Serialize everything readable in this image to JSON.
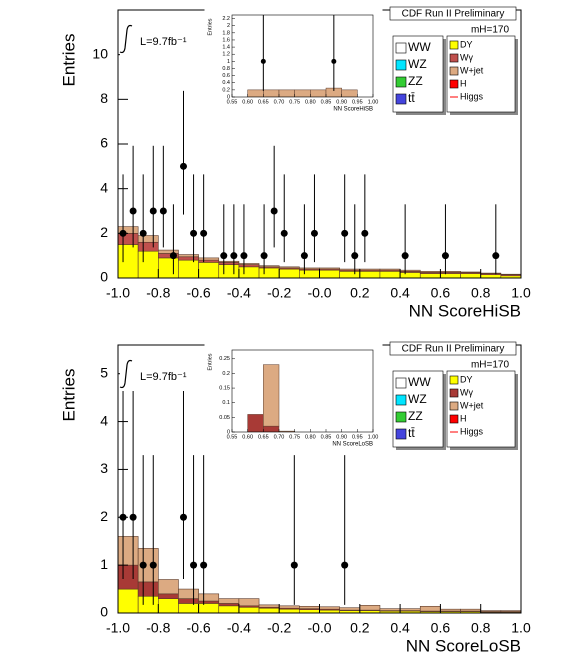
{
  "chart_data": [
    {
      "type": "histogram",
      "title": "CDF Run II Preliminary",
      "mass_label": "mH=170",
      "lumi_label": "L=9.7fb⁻¹",
      "ylabel": "Entries",
      "xlabel": "NN ScoreHiSB",
      "xlim": [
        -1,
        1
      ],
      "ylim": [
        0,
        12
      ],
      "xticks": [
        {
          "value": -1,
          "label": "-1.0"
        },
        -0.8,
        -0.6,
        -0.4,
        -0.2,
        {
          "value": 0,
          "label": "-0.0"
        },
        0.2,
        0.4,
        0.6,
        0.8,
        {
          "value": 1,
          "label": "1.0"
        }
      ],
      "yticks": [
        0,
        2,
        4,
        6,
        8,
        10
      ],
      "bins": [
        -1,
        -0.9,
        -0.8,
        -0.7,
        -0.6,
        -0.5,
        -0.4,
        -0.3,
        -0.2,
        -0.1,
        0,
        0.1,
        0.2,
        0.3,
        0.4,
        0.5,
        0.6,
        0.7,
        0.8,
        0.9,
        1
      ],
      "series": [
        {
          "name": "WW",
          "color": "#ffffff"
        },
        {
          "name": "WZ",
          "color": "#00e5ff"
        },
        {
          "name": "ZZ",
          "color": "#33cc33"
        },
        {
          "name": "tt̄",
          "color": "#4444dd"
        },
        {
          "name": "DY",
          "color": "#ffff00",
          "values": [
            1.5,
            1.2,
            0.9,
            0.8,
            0.7,
            0.6,
            0.5,
            0.45,
            0.4,
            0.35,
            0.35,
            0.3,
            0.3,
            0.3,
            0.25,
            0.2,
            0.2,
            0.2,
            0.15,
            0.1
          ]
        },
        {
          "name": "Wγ",
          "color": "#c0504d",
          "values": [
            0.5,
            0.4,
            0.2,
            0.15,
            0.1,
            0.1,
            0.1,
            0.05,
            0.05,
            0.05,
            0.05,
            0.05,
            0.05,
            0.05,
            0.05,
            0.05,
            0.05,
            0.05,
            0.05,
            0.05
          ]
        },
        {
          "name": "W+jet",
          "color": "#dcaa82",
          "values": [
            0.3,
            0.3,
            0.15,
            0.1,
            0.1,
            0.05,
            0.05,
            0.05,
            0.05,
            0.05,
            0.05,
            0.05,
            0.05,
            0.05,
            0.05,
            0.05,
            0.05,
            0.02,
            0.02,
            0.02
          ]
        },
        {
          "name": "H",
          "color": "#ff0000"
        },
        {
          "name": "Higgs",
          "color": "#ff0000",
          "style": "line"
        }
      ],
      "points": {
        "x": [
          -0.975,
          -0.925,
          -0.875,
          -0.825,
          -0.775,
          -0.725,
          -0.675,
          -0.625,
          -0.575,
          -0.475,
          -0.425,
          -0.375,
          -0.275,
          -0.225,
          -0.175,
          -0.075,
          -0.025,
          0.125,
          0.175,
          0.225,
          0.425,
          0.625,
          0.875
        ],
        "values": [
          2,
          3,
          2,
          3,
          3,
          1,
          5,
          2,
          2,
          1,
          1,
          1,
          1,
          3,
          2,
          1,
          2,
          2,
          1,
          2,
          1,
          1,
          1
        ],
        "err_low": [
          1.29,
          1.63,
          1.29,
          1.63,
          1.63,
          0.83,
          2.16,
          1.29,
          1.29,
          0.83,
          0.83,
          0.83,
          0.83,
          1.63,
          1.29,
          0.83,
          1.29,
          1.29,
          0.83,
          1.29,
          0.83,
          0.83,
          0.83
        ],
        "err_high": [
          2.64,
          2.92,
          2.64,
          2.92,
          2.92,
          2.3,
          3.38,
          2.64,
          2.64,
          2.3,
          2.3,
          2.3,
          2.3,
          2.92,
          2.64,
          2.3,
          2.64,
          2.64,
          2.3,
          2.64,
          2.3,
          2.3,
          2.3
        ]
      },
      "inset": {
        "ylabel": "Entries",
        "xlabel": "NN ScoreHiSB",
        "xlim": [
          0.55,
          1.0
        ],
        "ylim": [
          0,
          2.3
        ],
        "xticks": [
          0.55,
          {
            "value": 0.6,
            "label": "0.60"
          },
          0.65,
          {
            "value": 0.7,
            "label": "0.70"
          },
          0.75,
          {
            "value": 0.8,
            "label": "0.80"
          },
          0.85,
          {
            "value": 0.9,
            "label": "0.90"
          },
          0.95,
          {
            "value": 1,
            "label": "1.00"
          }
        ],
        "yticks": [
          0,
          0.2,
          0.4,
          0.6,
          0.8,
          1,
          1.2,
          1.4,
          1.6,
          1.8,
          2,
          2.2
        ],
        "bins": [
          0.6,
          0.65,
          0.7,
          0.75,
          0.8,
          0.85,
          0.9,
          0.95
        ],
        "series": [
          {
            "color": "#dcaa82",
            "values": [
              0.2,
              0.2,
              0.2,
              0.2,
              0.2,
              0.25,
              0.2
            ]
          }
        ],
        "points": {
          "x": [
            0.65,
            0.875
          ],
          "values": [
            1,
            1
          ],
          "err_low": [
            0.83,
            0.83
          ],
          "err_high": [
            2.3,
            2.3
          ]
        }
      }
    },
    {
      "type": "histogram",
      "title": "CDF Run II Preliminary",
      "mass_label": "mH=170",
      "lumi_label": "L=9.7fb⁻¹",
      "ylabel": "Entries",
      "xlabel": "NN ScoreLoSB",
      "xlim": [
        -1,
        1
      ],
      "ylim": [
        0,
        5.6
      ],
      "xticks": [
        {
          "value": -1,
          "label": "-1.0"
        },
        -0.8,
        -0.6,
        -0.4,
        -0.2,
        {
          "value": 0,
          "label": "-0.0"
        },
        0.2,
        0.4,
        0.6,
        0.8,
        {
          "value": 1,
          "label": "1.0"
        }
      ],
      "yticks": [
        0,
        1,
        2,
        3,
        4,
        5
      ],
      "bins": [
        -1,
        -0.9,
        -0.8,
        -0.7,
        -0.6,
        -0.5,
        -0.4,
        -0.3,
        -0.2,
        -0.1,
        0,
        0.1,
        0.2,
        0.3,
        0.4,
        0.5,
        0.6,
        0.7,
        0.8,
        0.9,
        1
      ],
      "series": [
        {
          "name": "WW",
          "color": "#ffffff"
        },
        {
          "name": "WZ",
          "color": "#00e5ff"
        },
        {
          "name": "ZZ",
          "color": "#33cc33"
        },
        {
          "name": "tt̄",
          "color": "#4444dd"
        },
        {
          "name": "DY",
          "color": "#ffff00",
          "values": [
            0.5,
            0.35,
            0.3,
            0.2,
            0.2,
            0.15,
            0.12,
            0.1,
            0.08,
            0.07,
            0.06,
            0.05,
            0.05,
            0.04,
            0.04,
            0.03,
            0.03,
            0.03,
            0.02,
            0.02
          ]
        },
        {
          "name": "Wγ",
          "color": "#a83a36",
          "values": [
            0.5,
            0.3,
            0.1,
            0.1,
            0.05,
            0.05,
            0.03,
            0.02,
            0.02,
            0.02,
            0.02,
            0.01,
            0.01,
            0.01,
            0.01,
            0.01,
            0.01,
            0.01,
            0.01,
            0.01
          ]
        },
        {
          "name": "W+jet",
          "color": "#dcaa82",
          "values": [
            0.6,
            0.7,
            0.3,
            0.2,
            0.15,
            0.1,
            0.15,
            0.05,
            0.05,
            0.05,
            0.05,
            0.05,
            0.1,
            0.04,
            0.04,
            0.1,
            0.04,
            0.04,
            0.02,
            0.02
          ]
        },
        {
          "name": "H",
          "color": "#ff0000"
        },
        {
          "name": "Higgs",
          "color": "#ff0000",
          "style": "line"
        }
      ],
      "points": {
        "x": [
          -0.975,
          -0.925,
          -0.875,
          -0.825,
          -0.675,
          -0.625,
          -0.575,
          -0.125,
          0.125
        ],
        "values": [
          2,
          2,
          1,
          1,
          2,
          1,
          1,
          1,
          1
        ],
        "err_low": [
          1.29,
          1.29,
          0.83,
          0.83,
          1.29,
          0.83,
          0.83,
          0.83,
          0.83
        ],
        "err_high": [
          2.64,
          2.64,
          2.3,
          2.3,
          2.64,
          2.3,
          2.3,
          2.3,
          2.3
        ]
      },
      "inset": {
        "ylabel": "Entries",
        "xlabel": "NN ScoreLoSB",
        "xlim": [
          0.55,
          1.0
        ],
        "ylim": [
          0,
          0.28
        ],
        "xticks": [
          0.55,
          {
            "value": 0.6,
            "label": "0.60"
          },
          0.65,
          {
            "value": 0.7,
            "label": "0.70"
          },
          0.75,
          {
            "value": 0.8,
            "label": "0.80"
          },
          0.85,
          {
            "value": 0.9,
            "label": "0.90"
          },
          0.95,
          {
            "value": 1,
            "label": "1.00"
          }
        ],
        "yticks": [
          0,
          0.05,
          0.1,
          0.15,
          0.2,
          0.25
        ],
        "bins": [
          0.6,
          0.65,
          0.7,
          0.75
        ],
        "series": [
          {
            "color": "#a83a36",
            "values": [
              0.06,
              0.02,
              0
            ]
          },
          {
            "color": "#dcaa82",
            "values": [
              0,
              0.21,
              0.003
            ]
          }
        ]
      }
    }
  ]
}
